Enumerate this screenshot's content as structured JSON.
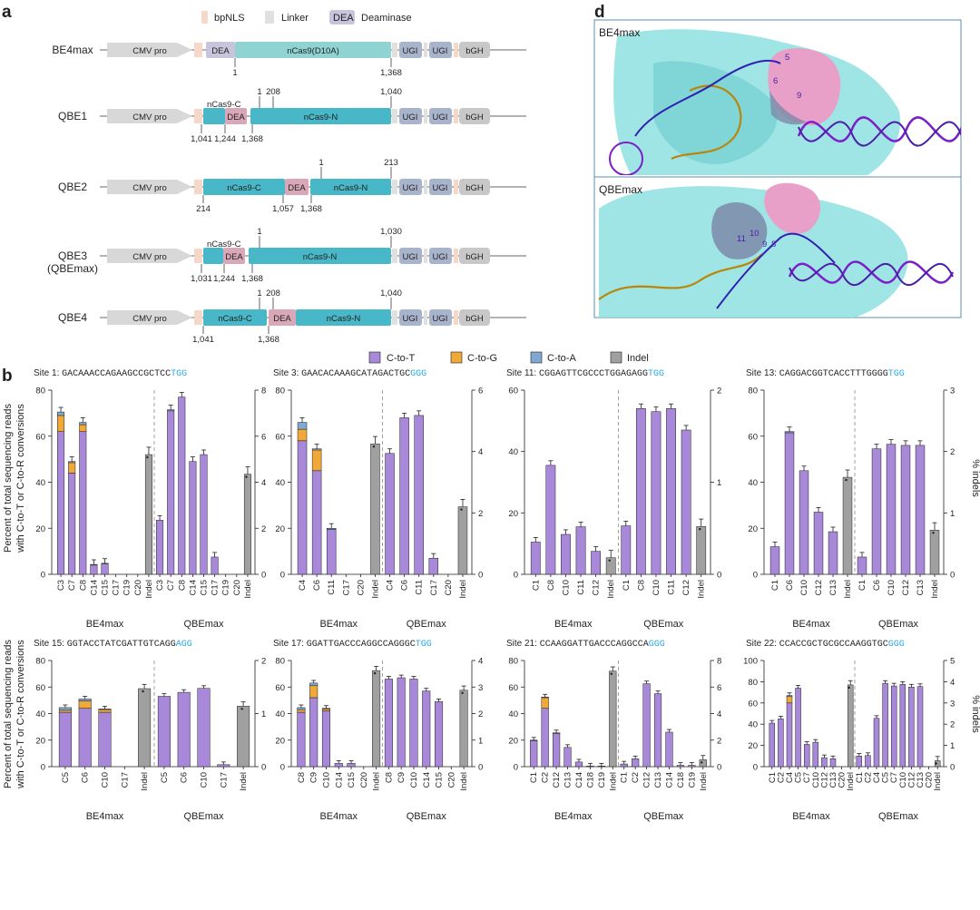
{
  "panel_letters": {
    "a": "a",
    "b": "b",
    "d": "d"
  },
  "legend_top": {
    "bpnls": "bpNLS",
    "linker": "Linker",
    "dea_box": "DEA",
    "deaminase": "Deaminase"
  },
  "constructs": [
    {
      "name": "BE4max",
      "name2": "",
      "promoter": "CMV pro",
      "segments": [
        "DEA",
        "nCas9(D10A)"
      ],
      "ugi1": "UGI",
      "ugi2": "UGI",
      "bgh": "bGH",
      "numbers": [
        "1",
        "1,368"
      ]
    },
    {
      "name": "QBE1",
      "name2": "",
      "promoter": "CMV pro",
      "segments": [
        "nCas9-C",
        "DEA",
        "nCas9-N"
      ],
      "ugi1": "UGI",
      "ugi2": "UGI",
      "bgh": "bGH",
      "numbers": [
        "1,041",
        "1,244",
        "1,368",
        "1",
        "208",
        "1,040"
      ]
    },
    {
      "name": "QBE2",
      "name2": "",
      "promoter": "CMV pro",
      "segments": [
        "nCas9-C",
        "DEA",
        "nCas9-N"
      ],
      "ugi1": "UGI",
      "ugi2": "UGI",
      "bgh": "bGH",
      "numbers": [
        "214",
        "1,057",
        "1,368",
        "1",
        "213"
      ]
    },
    {
      "name": "QBE3",
      "name2": "(QBEmax)",
      "promoter": "CMV pro",
      "segments": [
        "nCas9-C",
        "DEA",
        "nCas9-N"
      ],
      "ugi1": "UGI",
      "ugi2": "UGI",
      "bgh": "bGH",
      "numbers": [
        "1,031",
        "1,244",
        "1,368",
        "1",
        "1,030"
      ]
    },
    {
      "name": "QBE4",
      "name2": "",
      "promoter": "CMV pro",
      "segments": [
        "nCas9-C",
        "DEA",
        "nCas9-N"
      ],
      "ugi1": "UGI",
      "ugi2": "UGI",
      "bgh": "bGH",
      "numbers": [
        "1,041",
        "1,368",
        "1",
        "208",
        "1,040"
      ]
    }
  ],
  "structures": {
    "top_label": "BE4max",
    "bottom_label": "QBEmax",
    "top_numbers": [
      "5",
      "6",
      "9"
    ],
    "bottom_numbers": [
      "11",
      "10",
      "9",
      "8"
    ]
  },
  "legend_b": [
    "C-to-T",
    "C-to-G",
    "C-to-A",
    "Indel"
  ],
  "colors": {
    "c_to_t": "#a888d8",
    "c_to_g": "#f0a838",
    "c_to_a": "#80a8d0",
    "indel": "#a0a0a0",
    "pam": "#29a8e0",
    "cas9": "#48b8c8",
    "cas9_light": "#8fd3d3",
    "dea": "#d8a8b8",
    "ugi": "#a8b4cc",
    "nls": "#f5d8c8",
    "linker": "#e0e0e0",
    "structure_bg": "#8ee0e0"
  },
  "axis_titles": {
    "left1": "Percent of total sequencing reads",
    "left2": "with C-to-T or C-to-R conversions",
    "right": "% indels"
  },
  "group_labels": [
    "BE4max",
    "QBEmax"
  ],
  "chart_data": [
    {
      "type": "bar",
      "title": "Site 1:",
      "spacer": "GACAAACCAGAAGCCGCTCC",
      "pam": "TGG",
      "ylim": [
        0,
        80
      ],
      "yticks": [
        0,
        20,
        40,
        60,
        80
      ],
      "y2lim": [
        0,
        8
      ],
      "y2ticks": [
        0,
        2,
        4,
        6,
        8
      ],
      "be4max": {
        "categories": [
          "C3",
          "C7",
          "C8",
          "C14",
          "C15",
          "C17",
          "C19",
          "C20"
        ],
        "c_to_t": [
          62,
          44,
          62,
          4,
          4.5,
          0,
          0,
          0
        ],
        "c_to_g": [
          7,
          4.5,
          3,
          0,
          0,
          0,
          0,
          0
        ],
        "c_to_a": [
          1.5,
          0.5,
          1,
          0.3,
          0.3,
          0,
          0,
          0
        ],
        "indel": 5.2
      },
      "qbemax": {
        "categories": [
          "C3",
          "C7",
          "C8",
          "C14",
          "C15",
          "C17",
          "C19",
          "C20"
        ],
        "c_to_t": [
          23.5,
          71,
          77,
          49,
          52,
          7.5,
          0,
          0
        ],
        "c_to_g": [
          0,
          0,
          0,
          0,
          0,
          0,
          0,
          0
        ],
        "c_to_a": [
          0,
          0.5,
          0,
          0,
          0,
          0,
          0,
          0
        ],
        "indel": 4.35
      }
    },
    {
      "type": "bar",
      "title": "Site 3:",
      "spacer": "GAACACAAAGCATAGACTGC",
      "pam": "GGG",
      "ylim": [
        0,
        80
      ],
      "yticks": [
        0,
        20,
        40,
        60,
        80
      ],
      "y2lim": [
        0,
        6
      ],
      "y2ticks": [
        0,
        2,
        4,
        6
      ],
      "be4max": {
        "categories": [
          "C4",
          "C6",
          "C11",
          "C17",
          "C20"
        ],
        "c_to_t": [
          58,
          45,
          19.5,
          0,
          0
        ],
        "c_to_g": [
          5,
          9,
          0,
          0,
          0
        ],
        "c_to_a": [
          3,
          0.5,
          0.5,
          0,
          0
        ],
        "indel": 4.25
      },
      "qbemax": {
        "categories": [
          "C4",
          "C6",
          "C11",
          "C17",
          "C20"
        ],
        "c_to_t": [
          52.5,
          68,
          69,
          7,
          0
        ],
        "c_to_g": [
          0,
          0,
          0,
          0,
          0
        ],
        "c_to_a": [
          0,
          0,
          0,
          0,
          0
        ],
        "indel": 2.2
      }
    },
    {
      "type": "bar",
      "title": "Site 11:",
      "spacer": "CGGAGTTCGCCCTGGAGAGG",
      "pam": "TGG",
      "ylim": [
        0,
        60
      ],
      "yticks": [
        0,
        20,
        40,
        60
      ],
      "y2lim": [
        0,
        2
      ],
      "y2ticks": [
        0,
        1,
        2
      ],
      "be4max": {
        "categories": [
          "C1",
          "C8",
          "C10",
          "C11",
          "C12"
        ],
        "c_to_t": [
          10.5,
          35.5,
          13,
          15.5,
          7.5
        ],
        "c_to_g": [
          0,
          0,
          0,
          0,
          0
        ],
        "c_to_a": [
          0,
          0,
          0,
          0,
          0
        ],
        "indel": 0.18
      },
      "qbemax": {
        "categories": [
          "C1",
          "C8",
          "C10",
          "C11",
          "C12"
        ],
        "c_to_t": [
          15.8,
          54,
          53,
          54,
          47
        ],
        "c_to_g": [
          0,
          0,
          0,
          0,
          0
        ],
        "c_to_a": [
          0,
          0,
          0,
          0,
          0
        ],
        "indel": 0.52
      }
    },
    {
      "type": "bar",
      "title": "Site 13:",
      "spacer": "CAGGACGGTCACCTTTGGGG",
      "pam": "TGG",
      "ylim": [
        0,
        80
      ],
      "yticks": [
        0,
        20,
        40,
        60,
        80
      ],
      "y2lim": [
        0,
        3
      ],
      "y2ticks": [
        0,
        1,
        2,
        3
      ],
      "be4max": {
        "categories": [
          "C1",
          "C6",
          "C10",
          "C12",
          "C13"
        ],
        "c_to_t": [
          12,
          61.5,
          45,
          27,
          18.5
        ],
        "c_to_g": [
          0,
          0,
          0,
          0,
          0
        ],
        "c_to_a": [
          0,
          0.5,
          0,
          0,
          0
        ],
        "indel": 1.58
      },
      "qbemax": {
        "categories": [
          "C1",
          "C6",
          "C10",
          "C12",
          "C13"
        ],
        "c_to_t": [
          7.5,
          54.5,
          56.5,
          56,
          56
        ],
        "c_to_g": [
          0,
          0,
          0,
          0,
          0
        ],
        "c_to_a": [
          0,
          0,
          0,
          0,
          0
        ],
        "indel": 0.72
      }
    },
    {
      "type": "bar",
      "title": "Site 15:",
      "spacer": "GGTACCTATCGATTGTCAGG",
      "pam": "AGG",
      "ylim": [
        0,
        80
      ],
      "yticks": [
        0,
        20,
        40,
        60,
        80
      ],
      "y2lim": [
        0,
        2
      ],
      "y2ticks": [
        0,
        1,
        2
      ],
      "be4max": {
        "categories": [
          "C5",
          "C6",
          "C10",
          "C17"
        ],
        "c_to_t": [
          41,
          44,
          41,
          0
        ],
        "c_to_g": [
          1.5,
          5.5,
          2,
          0
        ],
        "c_to_a": [
          2,
          1.5,
          0.5,
          0
        ],
        "indel": 1.47
      },
      "qbemax": {
        "categories": [
          "C5",
          "C6",
          "C10",
          "C17"
        ],
        "c_to_t": [
          53,
          56,
          59,
          1.5
        ],
        "c_to_g": [
          0,
          0,
          0,
          0
        ],
        "c_to_a": [
          0,
          0,
          0,
          0
        ],
        "indel": 1.14
      }
    },
    {
      "type": "bar",
      "title": "Site 17:",
      "spacer": "GGATTGACCCAGGCCAGGGC",
      "pam": "TGG",
      "ylim": [
        0,
        80
      ],
      "yticks": [
        0,
        20,
        40,
        60,
        80
      ],
      "y2lim": [
        0,
        4
      ],
      "y2ticks": [
        0,
        1,
        2,
        3,
        4
      ],
      "be4max": {
        "categories": [
          "C8",
          "C9",
          "C10",
          "C14",
          "C15",
          "C20"
        ],
        "c_to_t": [
          41,
          52,
          42,
          2.5,
          2.5,
          0
        ],
        "c_to_g": [
          2,
          9,
          1.5,
          0,
          0,
          0
        ],
        "c_to_a": [
          1.5,
          2,
          0.5,
          0,
          0,
          0
        ],
        "indel": 3.62
      },
      "qbemax": {
        "categories": [
          "C8",
          "C9",
          "C10",
          "C14",
          "C15",
          "C20"
        ],
        "c_to_t": [
          66,
          67,
          66,
          57,
          49,
          0
        ],
        "c_to_g": [
          0,
          0,
          0,
          0,
          0,
          0
        ],
        "c_to_a": [
          0,
          0,
          0,
          0,
          0,
          0
        ],
        "indel": 2.88
      }
    },
    {
      "type": "bar",
      "title": "Site 21:",
      "spacer": "CCAAGGATTGACCCAGGCCA",
      "pam": "GGG",
      "ylim": [
        0,
        80
      ],
      "yticks": [
        0,
        20,
        40,
        60,
        80
      ],
      "y2lim": [
        0,
        8
      ],
      "y2ticks": [
        0,
        2,
        4,
        6,
        8
      ],
      "be4max": {
        "categories": [
          "C1",
          "C2",
          "C12",
          "C13",
          "C14",
          "C18",
          "C19"
        ],
        "c_to_t": [
          19.5,
          44,
          25,
          14.5,
          3.5,
          0.5,
          0.5
        ],
        "c_to_g": [
          0,
          8,
          0.5,
          0,
          0,
          0,
          0
        ],
        "c_to_a": [
          0.5,
          0.5,
          0,
          0,
          0,
          0,
          0
        ],
        "indel": 7.2
      },
      "qbemax": {
        "categories": [
          "C1",
          "C2",
          "C12",
          "C13",
          "C14",
          "C18",
          "C19"
        ],
        "c_to_t": [
          2,
          6,
          62.5,
          55,
          26,
          1,
          1
        ],
        "c_to_g": [
          0,
          0,
          0,
          0,
          0,
          0,
          0
        ],
        "c_to_a": [
          0,
          0,
          0,
          0,
          0,
          0,
          0
        ],
        "indel": 0.52
      }
    },
    {
      "type": "bar",
      "title": "Site 22:",
      "spacer": "CCACCGCTGCGCCAAGGTGC",
      "pam": "GGG",
      "ylim": [
        0,
        100
      ],
      "yticks": [
        0,
        20,
        40,
        60,
        80,
        100
      ],
      "y2lim": [
        0,
        5
      ],
      "y2ticks": [
        0,
        1,
        2,
        3,
        4,
        5
      ],
      "be4max": {
        "categories": [
          "C1",
          "C2",
          "C4",
          "C5",
          "C7",
          "C10",
          "C12",
          "C13",
          "C20"
        ],
        "c_to_t": [
          41,
          45,
          60,
          74,
          21,
          23,
          8.5,
          7.5,
          0
        ],
        "c_to_g": [
          0,
          0,
          6,
          0,
          0,
          0,
          0,
          0,
          0
        ],
        "c_to_a": [
          0,
          0,
          1,
          0,
          0,
          0,
          0,
          0,
          0
        ],
        "indel": 3.85
      },
      "qbemax": {
        "categories": [
          "C1",
          "C2",
          "C4",
          "C5",
          "C7",
          "C10",
          "C12",
          "C13",
          "C20"
        ],
        "c_to_t": [
          10,
          10.5,
          45.5,
          78.5,
          76,
          77.5,
          75,
          75.5,
          0
        ],
        "c_to_g": [
          0,
          0,
          0,
          0,
          0,
          0,
          0,
          0,
          0
        ],
        "c_to_a": [
          0,
          0,
          0,
          0,
          0,
          0,
          0,
          0,
          0
        ],
        "indel": 0.28
      }
    }
  ]
}
